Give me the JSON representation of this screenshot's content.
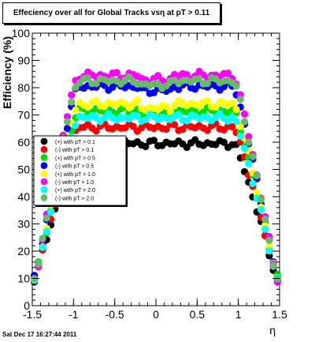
{
  "title": "Effeciency over all for Global Tracks vsη at pT > 0.11",
  "footer": "Sat Dec 17 16:27:44 2011",
  "chart_data": {
    "type": "scatter",
    "title": "Effeciency over all for Global Tracks vsη at pT > 0.11",
    "xlabel": "η",
    "ylabel": "Efficiency (%)",
    "xlim": [
      -1.5,
      1.5
    ],
    "ylim": [
      0,
      100
    ],
    "x_ticks": [
      "-1.5",
      "-1",
      "-0.5",
      "0",
      "0.5",
      "1",
      "1.5"
    ],
    "y_ticks": [
      "0",
      "10",
      "20",
      "30",
      "40",
      "50",
      "60",
      "70",
      "80",
      "90",
      "100"
    ],
    "legend_position": "left-middle",
    "grid": false,
    "series": [
      {
        "name": "(+) with pT > 0.1",
        "color": "#000000",
        "plateau": 59.5
      },
      {
        "name": "(-) with pT > 0.1",
        "color": "#ff0000",
        "plateau": 65.5
      },
      {
        "name": "(+) with pT > 0.5",
        "color": "#00dd00",
        "plateau": 71.5
      },
      {
        "name": "(-) with pT > 0.5",
        "color": "#0000ff",
        "plateau": 80.5
      },
      {
        "name": "(+) with pT > 1.0",
        "color": "#ffff00",
        "plateau": 74.0
      },
      {
        "name": "(-) with pT > 1.0",
        "color": "#ff00ff",
        "plateau": 84.5
      },
      {
        "name": "(+) with pT > 2.0",
        "color": "#00ffff",
        "plateau": 69.0
      },
      {
        "name": "(-) with pT > 2.0",
        "color": "#66bb66",
        "plateau": 82.5
      }
    ]
  }
}
